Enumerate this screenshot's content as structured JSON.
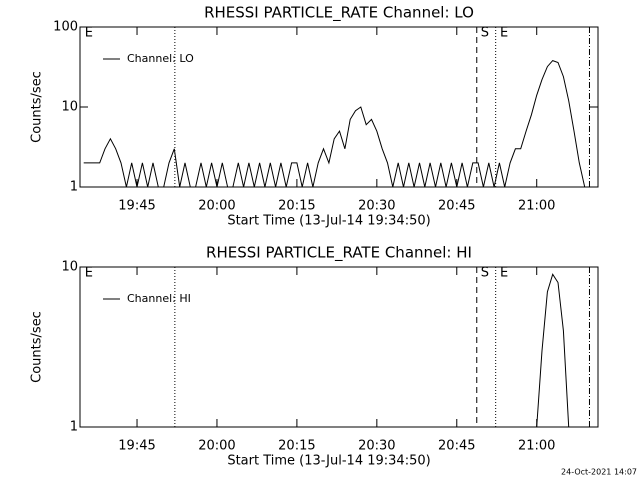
{
  "chart_data": [
    {
      "type": "line",
      "title": "RHESSI PARTICLE_RATE Channel: LO",
      "xlabel": "Start Time (13-Jul-14 19:34:50)",
      "ylabel": "Counts/sec",
      "log_y": true,
      "ylim": [
        1,
        100
      ],
      "yticks": [
        1,
        10,
        100
      ],
      "xlim": [
        34.3,
        131.5
      ],
      "xticks": [
        {
          "value": 45,
          "label": "19:45"
        },
        {
          "value": 60,
          "label": "20:00"
        },
        {
          "value": 75,
          "label": "20:15"
        },
        {
          "value": 90,
          "label": "20:30"
        },
        {
          "value": 105,
          "label": "20:45"
        },
        {
          "value": 120,
          "label": "21:00"
        }
      ],
      "legend": "upper left",
      "x": [
        35,
        36,
        37,
        38,
        39,
        40,
        41,
        42,
        43,
        44,
        45,
        46,
        47,
        48,
        49,
        50,
        51,
        52,
        53,
        54,
        55,
        56,
        57,
        58,
        59,
        60,
        61,
        62,
        63,
        64,
        65,
        66,
        67,
        68,
        69,
        70,
        71,
        72,
        73,
        74,
        75,
        76,
        77,
        78,
        79,
        80,
        81,
        82,
        83,
        84,
        85,
        86,
        87,
        88,
        89,
        90,
        91,
        92,
        93,
        94,
        95,
        96,
        97,
        98,
        99,
        100,
        101,
        102,
        103,
        104,
        105,
        106,
        107,
        108,
        109,
        110,
        111,
        112,
        113,
        114,
        115,
        116,
        117,
        118,
        119,
        120,
        121,
        122,
        123,
        124,
        125,
        126,
        127,
        128,
        129,
        130,
        131
      ],
      "series": [
        {
          "name": "Channel: LO",
          "color": "#000000",
          "values": [
            2,
            2,
            2,
            2,
            3,
            4,
            3,
            2,
            1,
            2,
            1,
            2,
            1,
            2,
            1,
            1,
            2,
            3,
            1,
            2,
            1,
            1,
            2,
            1,
            2,
            1,
            2,
            1,
            1,
            2,
            1,
            2,
            1,
            2,
            1,
            2,
            1,
            2,
            1,
            2,
            2,
            1,
            2,
            1,
            2,
            3,
            2,
            4,
            5,
            3,
            7,
            9,
            10,
            6,
            7,
            5,
            3,
            2,
            1,
            2,
            1,
            2,
            1,
            2,
            1,
            2,
            1,
            2,
            1,
            2,
            1,
            2,
            1,
            2,
            2,
            1,
            2,
            1,
            2,
            1,
            2,
            3,
            3,
            5,
            8,
            14,
            22,
            32,
            38,
            36,
            24,
            12,
            5,
            2,
            1,
            1,
            1
          ]
        }
      ],
      "vlines": [
        {
          "x": 52.1,
          "style": "dotted"
        },
        {
          "x": 108.75,
          "style": "dashed"
        },
        {
          "x": 112.3,
          "style": "dotted"
        },
        {
          "x": 129.9,
          "style": "dashdot"
        }
      ],
      "annotations": [
        {
          "text": "E",
          "x": 35.2
        },
        {
          "text": "S",
          "x": 109.5
        },
        {
          "text": "E",
          "x": 113.1
        }
      ]
    },
    {
      "type": "line",
      "title": "RHESSI PARTICLE_RATE Channel: HI",
      "xlabel": "Start Time (13-Jul-14 19:34:50)",
      "ylabel": "Counts/sec",
      "log_y": true,
      "ylim": [
        1,
        10
      ],
      "yticks": [
        1,
        10
      ],
      "xlim": [
        34.3,
        131.5
      ],
      "xticks": [
        {
          "value": 45,
          "label": "19:45"
        },
        {
          "value": 60,
          "label": "20:00"
        },
        {
          "value": 75,
          "label": "20:15"
        },
        {
          "value": 90,
          "label": "20:30"
        },
        {
          "value": 105,
          "label": "20:45"
        },
        {
          "value": 120,
          "label": "21:00"
        }
      ],
      "legend": "upper left",
      "x": [
        120,
        121,
        122,
        123,
        124,
        125,
        126
      ],
      "series": [
        {
          "name": "Channel: HI",
          "color": "#000000",
          "values": [
            1,
            3,
            7,
            9,
            8,
            4,
            1
          ]
        }
      ],
      "vlines": [
        {
          "x": 52.1,
          "style": "dotted"
        },
        {
          "x": 108.75,
          "style": "dashed"
        },
        {
          "x": 112.3,
          "style": "dotted"
        },
        {
          "x": 129.9,
          "style": "dashdot"
        }
      ],
      "annotations": [
        {
          "text": "E",
          "x": 35.2
        },
        {
          "text": "S",
          "x": 109.5
        },
        {
          "text": "E",
          "x": 113.1
        }
      ]
    }
  ],
  "footer": "24-Oct-2021 14:07"
}
